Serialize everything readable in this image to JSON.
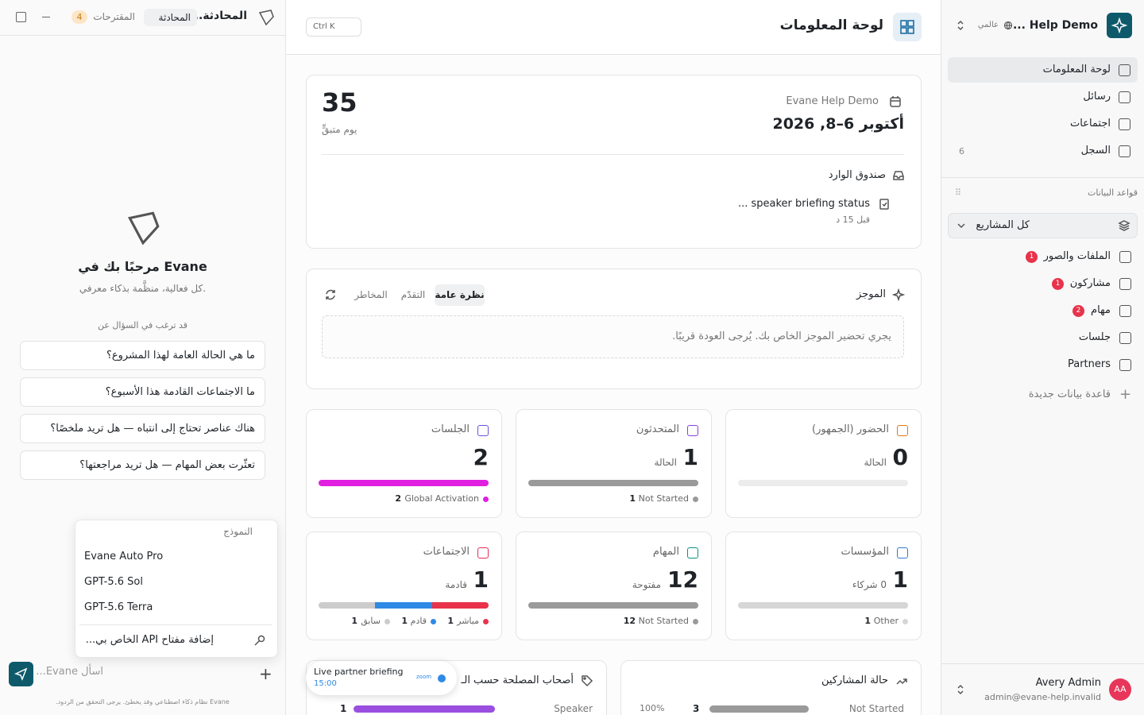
{
  "sidebar": {
    "workspace": "... Help Demo",
    "scope": "عالمي",
    "nav": [
      {
        "label": "لوحة المعلومات"
      },
      {
        "label": "رسائل"
      },
      {
        "label": "اجتماعات"
      },
      {
        "label": "السجل",
        "count": 6
      }
    ],
    "databases_title": "قواعد البيانات",
    "all_projects": "كل المشاريع",
    "databases": [
      {
        "label": "الملفات والصور",
        "badge": 1
      },
      {
        "label": "مشاركون",
        "badge": 1
      },
      {
        "label": "مهام",
        "badge": 2
      },
      {
        "label": "جلسات"
      },
      {
        "label": "Partners"
      }
    ],
    "new_database": "قاعدة بيانات جديدة",
    "user": {
      "initials": "AA",
      "name": "Avery Admin",
      "email": "admin@evane-help.invalid"
    }
  },
  "header": {
    "title": "لوحة المعلومات",
    "search": "Ctrl K"
  },
  "event": {
    "name": "Evane Help Demo",
    "dates": "أكتوبر 6–8, 2026",
    "days_left": 35,
    "days_left_label": "يوم متبقٍّ",
    "inbox_title": "صندوق الوارد",
    "inbox_items": [
      {
        "text": "speaker briefing status ...",
        "time": "قبل 15 د"
      }
    ]
  },
  "brief": {
    "title": "الموجز",
    "tabs": [
      "نظرة عامة",
      "التقدّم",
      "المخاطر"
    ],
    "message": "يجري تحضير الموجز الخاص بك. يُرجى العودة قريبًا."
  },
  "stats": [
    {
      "title": "الحضور (الجمهور)",
      "value": 0,
      "caption": "الحالة",
      "legend": []
    },
    {
      "title": "المتحدثون",
      "value": 1,
      "caption": "الحالة",
      "legend": [
        {
          "label": "Not Started",
          "count": 1,
          "color": "#9a9a9a"
        }
      ]
    },
    {
      "title": "الجلسات",
      "value": 2,
      "legend": [
        {
          "label": "Global Activation",
          "count": 2,
          "color": "#e11fe0"
        }
      ]
    },
    {
      "title": "المؤسسات",
      "value": 1,
      "caption": "0 شركاء",
      "legend": [
        {
          "label": "Other",
          "count": 1,
          "color": "#d6d6d6"
        }
      ]
    },
    {
      "title": "المهام",
      "value": 12,
      "caption": "مفتوحة",
      "legend": [
        {
          "label": "Not Started",
          "count": 12,
          "color": "#9a9a9a"
        }
      ]
    },
    {
      "title": "الاجتماعات",
      "value": 1,
      "caption": "قادمة",
      "legend": [
        {
          "label": "مباشر",
          "count": 1,
          "color": "#e8334a"
        },
        {
          "label": "قادم",
          "count": 1,
          "color": "#2f8ae5"
        },
        {
          "label": "سابق",
          "count": 1,
          "color": "#cccccc"
        }
      ]
    }
  ],
  "participants": {
    "title": "حالة المشاركين",
    "rows": [
      {
        "label": "Not Started",
        "count": 3,
        "percent": "100%"
      }
    ]
  },
  "stakeholders": {
    "title": "أصحاب المصلحة حسب الـ",
    "rows": [
      {
        "label": "Speaker",
        "count": 1
      }
    ]
  },
  "toast": {
    "title": "Live partner briefing",
    "time": "15:00",
    "provider": "zoom"
  },
  "chat": {
    "title": "المحادثة...",
    "mode": "المحادثة",
    "suggestions_tab": "المقترحات",
    "suggestions_count": 4,
    "welcome": "مرحبًا بك في Evane",
    "tagline": "كل فعالية، منظَّمة بذكاء معرفي.",
    "suggestions_title": "قد ترغب في السؤال عن",
    "suggestions": [
      "ما هي الحالة العامة لهذا المشروع؟",
      "ما الاجتماعات القادمة هذا الأسبوع؟",
      "هناك عناصر تحتاج إلى انتباه — هل تريد ملخصًا؟",
      "تعثّرت بعض المهام — هل تريد مراجعتها؟"
    ],
    "model_title": "النموذج",
    "models": [
      "Evane Auto Pro",
      "GPT-5.6 Sol",
      "GPT-5.6 Terra"
    ],
    "add_key": "إضافة مفتاح API الخاص بي...",
    "placeholder": "اسأل Evane...",
    "disclaimer": "Evane نظام ذكاء اصطناعي وقد يخطئ. يرجى التحقق من الردود."
  }
}
